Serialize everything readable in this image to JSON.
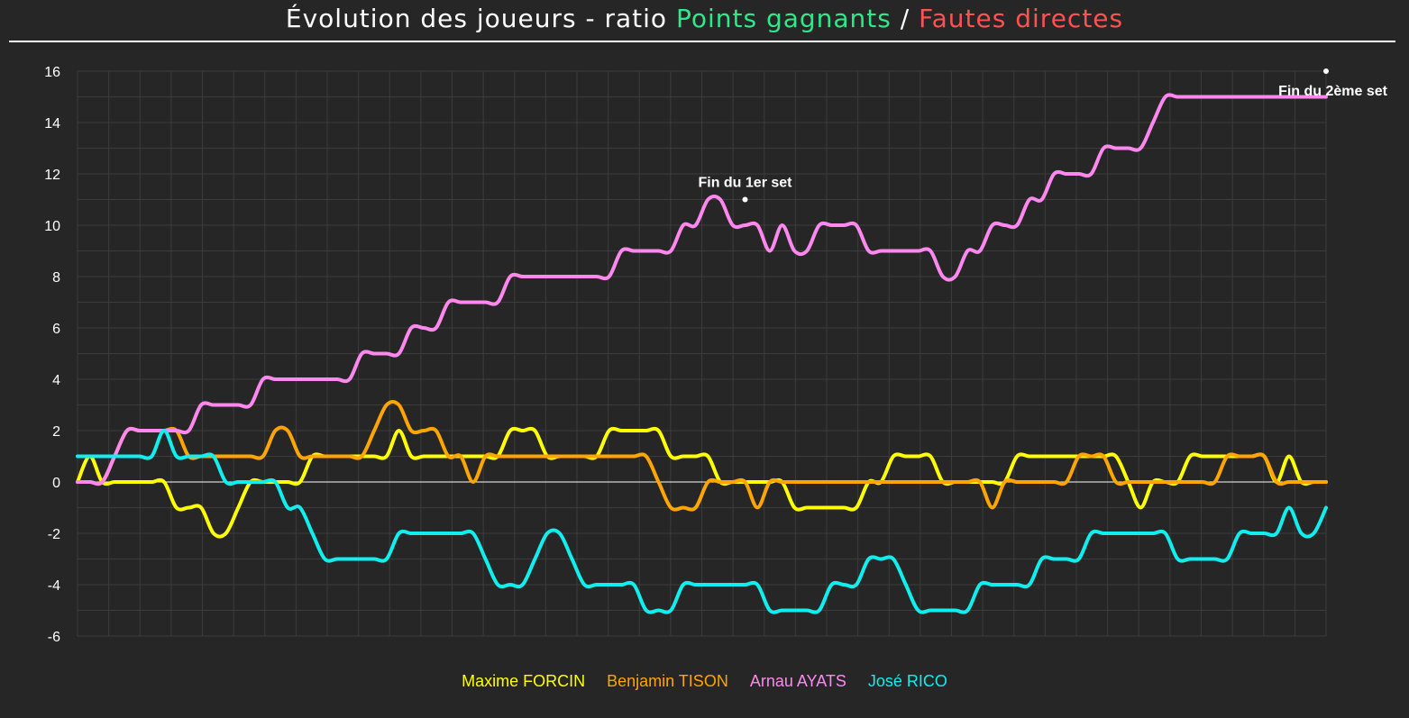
{
  "title": {
    "prefix": "Évolution des joueurs - ratio ",
    "green_part": "Points gagnants",
    "separator": " / ",
    "red_part": "Fautes directes",
    "green_color": "#2ee88a",
    "red_color": "#ff5252"
  },
  "chart_data": {
    "type": "line",
    "title": "Évolution des joueurs - ratio Points gagnants / Fautes directes",
    "xlabel": "",
    "ylabel": "",
    "xlim": [
      0,
      101
    ],
    "ylim": [
      -6,
      16
    ],
    "yticks": [
      "-6",
      "-4",
      "-2",
      "0",
      "2",
      "4",
      "6",
      "8",
      "10",
      "12",
      "14",
      "16"
    ],
    "grid": true,
    "legend_position": "bottom-center",
    "annotations": [
      {
        "text": "Fin du 1er set",
        "x": 54,
        "y": 11
      },
      {
        "text": "Fin du 2ème set",
        "x": 101,
        "y": 16
      }
    ],
    "series": [
      {
        "name": "Maxime FORCIN",
        "color": "#ffff00",
        "values": [
          0,
          1,
          0,
          0,
          0,
          0,
          0,
          0,
          -1,
          -1,
          -1,
          -2,
          -2,
          -1,
          0,
          0,
          0,
          0,
          0,
          1,
          1,
          1,
          1,
          1,
          1,
          1,
          2,
          1,
          1,
          1,
          1,
          1,
          1,
          1,
          1,
          2,
          2,
          2,
          1,
          1,
          1,
          1,
          1,
          2,
          2,
          2,
          2,
          2,
          1,
          1,
          1,
          1,
          0,
          0,
          0,
          0,
          0,
          0,
          -1,
          -1,
          -1,
          -1,
          -1,
          -1,
          0,
          0,
          1,
          1,
          1,
          1,
          0,
          0,
          0,
          0,
          0,
          0,
          1,
          1,
          1,
          1,
          1,
          1,
          1,
          1,
          1,
          0,
          -1,
          0,
          0,
          0,
          1,
          1,
          1,
          1,
          1,
          1,
          1,
          0,
          1,
          0,
          0,
          0
        ]
      },
      {
        "name": "Benjamin TISON",
        "color": "#ffa500",
        "values": [
          0,
          0,
          0,
          1,
          2,
          2,
          2,
          2,
          2,
          1,
          1,
          1,
          1,
          1,
          1,
          1,
          2,
          2,
          1,
          1,
          1,
          1,
          1,
          1,
          2,
          3,
          3,
          2,
          2,
          2,
          1,
          1,
          0,
          1,
          1,
          1,
          1,
          1,
          1,
          1,
          1,
          1,
          1,
          1,
          1,
          1,
          1,
          0,
          -1,
          -1,
          -1,
          0,
          0,
          0,
          0,
          -1,
          0,
          0,
          0,
          0,
          0,
          0,
          0,
          0,
          0,
          0,
          0,
          0,
          0,
          0,
          0,
          0,
          0,
          0,
          -1,
          0,
          0,
          0,
          0,
          0,
          0,
          1,
          1,
          1,
          0,
          0,
          0,
          0,
          0,
          0,
          0,
          0,
          0,
          1,
          1,
          1,
          1,
          0,
          0,
          0,
          0,
          0
        ]
      },
      {
        "name": "Arnau AYATS",
        "color": "#ff88ee",
        "values": [
          0,
          0,
          0,
          1,
          2,
          2,
          2,
          2,
          2,
          2,
          3,
          3,
          3,
          3,
          3,
          4,
          4,
          4,
          4,
          4,
          4,
          4,
          4,
          5,
          5,
          5,
          5,
          6,
          6,
          6,
          7,
          7,
          7,
          7,
          7,
          8,
          8,
          8,
          8,
          8,
          8,
          8,
          8,
          8,
          9,
          9,
          9,
          9,
          9,
          10,
          10,
          11,
          11,
          10,
          10,
          10,
          9,
          10,
          9,
          9,
          10,
          10,
          10,
          10,
          9,
          9,
          9,
          9,
          9,
          9,
          8,
          8,
          9,
          9,
          10,
          10,
          10,
          11,
          11,
          12,
          12,
          12,
          12,
          13,
          13,
          13,
          13,
          14,
          15,
          15,
          15,
          15,
          15,
          15,
          15,
          15,
          15,
          15,
          15,
          15,
          15,
          15
        ]
      },
      {
        "name": "José RICO",
        "color": "#11eeee",
        "values": [
          1,
          1,
          1,
          1,
          1,
          1,
          1,
          2,
          1,
          1,
          1,
          1,
          0,
          0,
          0,
          0,
          0,
          -1,
          -1,
          -2,
          -3,
          -3,
          -3,
          -3,
          -3,
          -3,
          -2,
          -2,
          -2,
          -2,
          -2,
          -2,
          -2,
          -3,
          -4,
          -4,
          -4,
          -3,
          -2,
          -2,
          -3,
          -4,
          -4,
          -4,
          -4,
          -4,
          -5,
          -5,
          -5,
          -4,
          -4,
          -4,
          -4,
          -4,
          -4,
          -4,
          -5,
          -5,
          -5,
          -5,
          -5,
          -4,
          -4,
          -4,
          -3,
          -3,
          -3,
          -4,
          -5,
          -5,
          -5,
          -5,
          -5,
          -4,
          -4,
          -4,
          -4,
          -4,
          -3,
          -3,
          -3,
          -3,
          -2,
          -2,
          -2,
          -2,
          -2,
          -2,
          -2,
          -3,
          -3,
          -3,
          -3,
          -3,
          -2,
          -2,
          -2,
          -2,
          -1,
          -2,
          -2,
          -1
        ]
      }
    ]
  }
}
